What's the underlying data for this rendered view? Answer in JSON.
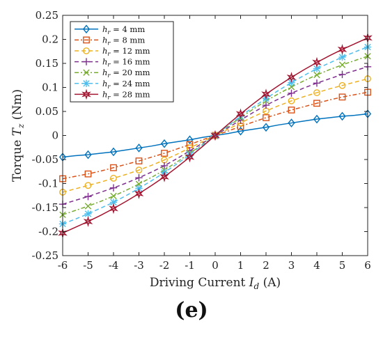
{
  "chart_data": {
    "type": "line",
    "xlabel": "Driving Current I_d (A)",
    "ylabel": "Torque T_z (Nm)",
    "xlim": [
      -6,
      6
    ],
    "ylim": [
      -0.25,
      0.25
    ],
    "xticks": [
      -6,
      -5,
      -4,
      -3,
      -2,
      -1,
      0,
      1,
      2,
      3,
      4,
      5,
      6
    ],
    "yticks": [
      -0.25,
      -0.2,
      -0.15,
      -0.1,
      -0.05,
      0,
      0.05,
      0.1,
      0.15,
      0.2,
      0.25
    ],
    "ytick_labels": [
      "-0.25",
      "-0.2",
      "-0.15",
      "-0.1",
      "-0.05",
      "0",
      "0.05",
      "0.1",
      "0.15",
      "0.2",
      "0.25"
    ],
    "grid": false,
    "legend_position": "top-left",
    "x": [
      -6,
      -5.5,
      -5,
      -4.5,
      -4,
      -3.5,
      -3,
      -2.5,
      -2,
      -1.5,
      -1,
      -0.5,
      0,
      0.5,
      1,
      1.5,
      2,
      2.5,
      3,
      3.5,
      4,
      4.5,
      5,
      5.5,
      6
    ],
    "series": [
      {
        "name": "h_r = 4 mm",
        "label_prefix": "h",
        "label_sub": "r",
        "label_suffix": " = 4 mm",
        "color": "#0072BD",
        "dash": "",
        "marker": "diamond",
        "values": [
          -0.045,
          -0.042,
          -0.04,
          -0.037,
          -0.034,
          -0.03,
          -0.026,
          -0.022,
          -0.017,
          -0.013,
          -0.009,
          -0.004,
          0.0,
          0.004,
          0.009,
          0.013,
          0.017,
          0.022,
          0.026,
          0.03,
          0.034,
          0.037,
          0.04,
          0.042,
          0.045
        ]
      },
      {
        "name": "h_r = 8 mm",
        "label_prefix": "h",
        "label_sub": "r",
        "label_suffix": " = 8 mm",
        "color": "#D95319",
        "dash": "6,3,2,3",
        "marker": "square",
        "values": [
          -0.09,
          -0.085,
          -0.08,
          -0.074,
          -0.067,
          -0.06,
          -0.053,
          -0.045,
          -0.037,
          -0.028,
          -0.019,
          -0.009,
          0.0,
          0.009,
          0.019,
          0.028,
          0.037,
          0.045,
          0.053,
          0.06,
          0.067,
          0.074,
          0.08,
          0.085,
          0.09
        ]
      },
      {
        "name": "h_r = 12 mm",
        "label_prefix": "h",
        "label_sub": "r",
        "label_suffix": " = 12 mm",
        "color": "#EDB120",
        "dash": "6,4",
        "marker": "circle",
        "values": [
          -0.118,
          -0.111,
          -0.104,
          -0.097,
          -0.089,
          -0.081,
          -0.072,
          -0.062,
          -0.051,
          -0.039,
          -0.026,
          -0.013,
          0.0,
          0.013,
          0.026,
          0.039,
          0.051,
          0.062,
          0.072,
          0.081,
          0.089,
          0.097,
          0.104,
          0.111,
          0.118
        ]
      },
      {
        "name": "h_r = 16 mm",
        "label_prefix": "h",
        "label_sub": "r",
        "label_suffix": " = 16 mm",
        "color": "#7E2F8E",
        "dash": "6,4",
        "marker": "plus",
        "values": [
          -0.143,
          -0.135,
          -0.127,
          -0.118,
          -0.109,
          -0.099,
          -0.088,
          -0.076,
          -0.063,
          -0.048,
          -0.032,
          -0.016,
          0.0,
          0.016,
          0.032,
          0.048,
          0.063,
          0.076,
          0.088,
          0.099,
          0.109,
          0.118,
          0.127,
          0.135,
          0.143
        ]
      },
      {
        "name": "h_r = 20 mm",
        "label_prefix": "h",
        "label_sub": "r",
        "label_suffix": " = 20 mm",
        "color": "#77AC30",
        "dash": "6,3,2,3",
        "marker": "x",
        "values": [
          -0.165,
          -0.156,
          -0.147,
          -0.137,
          -0.126,
          -0.114,
          -0.101,
          -0.087,
          -0.072,
          -0.055,
          -0.037,
          -0.019,
          0.0,
          0.019,
          0.037,
          0.055,
          0.072,
          0.087,
          0.101,
          0.114,
          0.126,
          0.137,
          0.147,
          0.156,
          0.165
        ]
      },
      {
        "name": "h_r = 24 mm",
        "label_prefix": "h",
        "label_sub": "r",
        "label_suffix": " = 24 mm",
        "color": "#4DBEEE",
        "dash": "6,4",
        "marker": "star",
        "values": [
          -0.184,
          -0.174,
          -0.163,
          -0.151,
          -0.139,
          -0.125,
          -0.11,
          -0.094,
          -0.077,
          -0.059,
          -0.04,
          -0.02,
          0.0,
          0.02,
          0.04,
          0.059,
          0.077,
          0.094,
          0.11,
          0.125,
          0.139,
          0.151,
          0.163,
          0.174,
          0.184
        ]
      },
      {
        "name": "h_r = 28 mm",
        "label_prefix": "h",
        "label_sub": "r",
        "label_suffix": " = 28 mm",
        "color": "#A2142F",
        "dash": "",
        "marker": "hexagram",
        "values": [
          -0.203,
          -0.191,
          -0.179,
          -0.166,
          -0.152,
          -0.137,
          -0.121,
          -0.104,
          -0.086,
          -0.066,
          -0.045,
          -0.023,
          0.0,
          0.023,
          0.045,
          0.066,
          0.086,
          0.104,
          0.121,
          0.137,
          0.152,
          0.166,
          0.179,
          0.191,
          0.203
        ]
      }
    ]
  },
  "panel_label": "(e)"
}
